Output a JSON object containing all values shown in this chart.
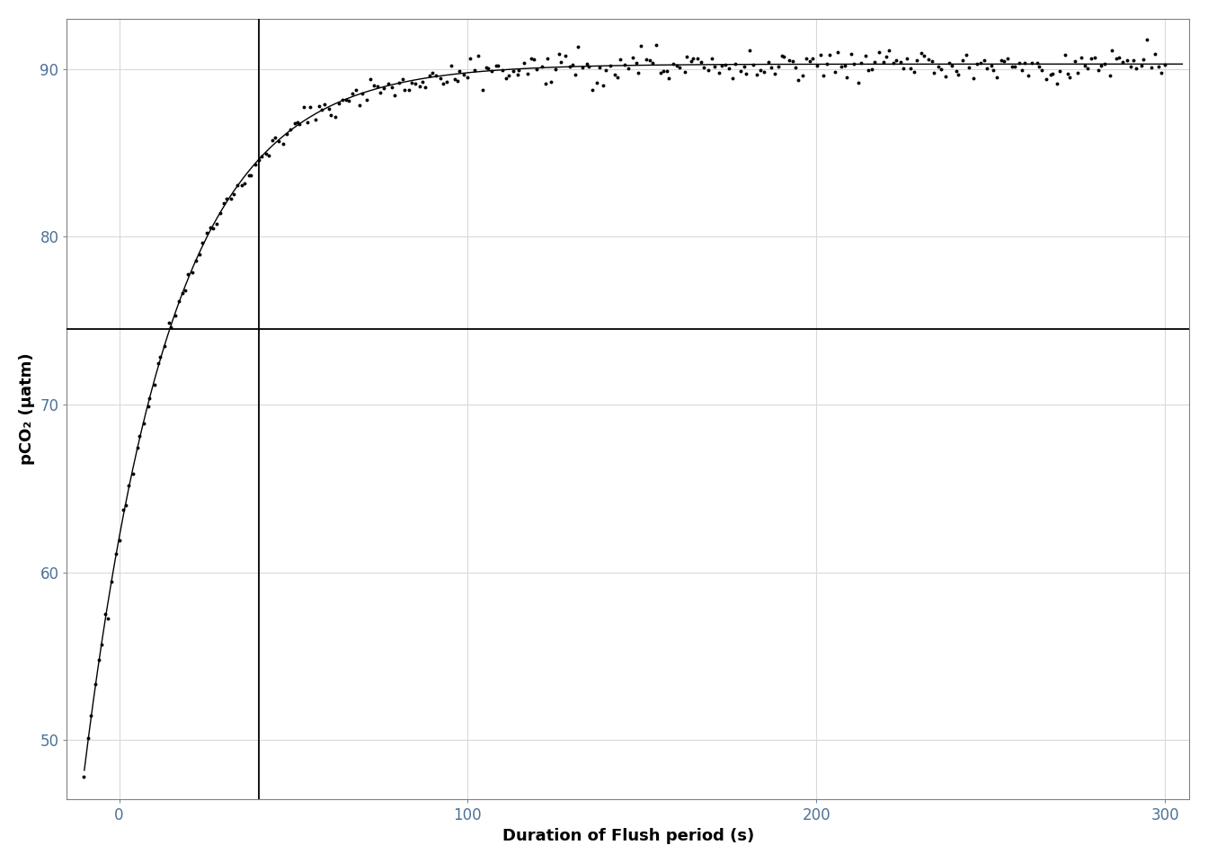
{
  "title": "",
  "xlabel": "Duration of Flush period (s)",
  "ylabel": "pCO₂ (µatm)",
  "xlim": [
    -15,
    307
  ],
  "ylim": [
    46.5,
    93
  ],
  "xticks": [
    0,
    100,
    200,
    300
  ],
  "yticks": [
    50,
    60,
    70,
    80,
    90
  ],
  "tau_x": 40,
  "hline_y": 74.5,
  "fit_y0": 48.2,
  "fit_yinf": 90.3,
  "fit_tau": 25.0,
  "fit_t0": -10,
  "noise_seed": 7,
  "background_color": "#ffffff",
  "grid_color": "#d9d9d9",
  "data_color": "#000000",
  "line_color": "#000000",
  "marker_size": 2.8,
  "xlabel_fontsize": 13,
  "ylabel_fontsize": 13,
  "tick_fontsize": 12,
  "tick_color": "#4d7296",
  "spine_color": "#808080"
}
